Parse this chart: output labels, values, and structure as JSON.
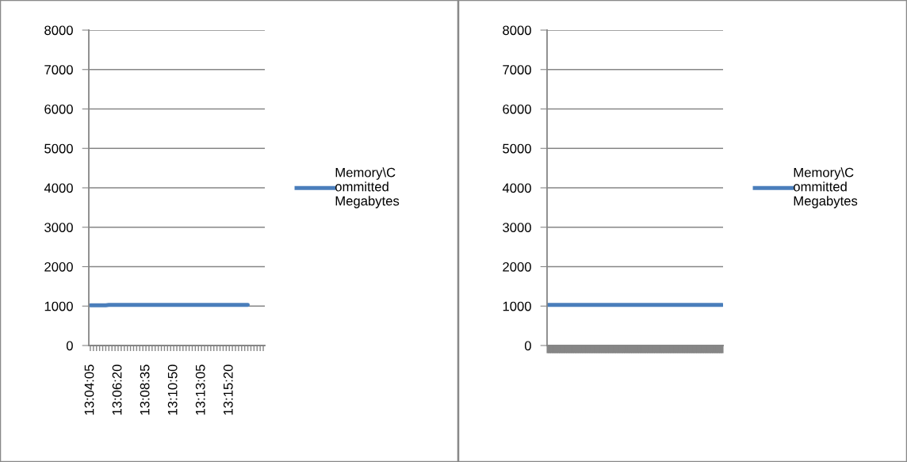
{
  "chart_data": [
    {
      "type": "line",
      "categories": [
        "13:04:05",
        null,
        null,
        null,
        null,
        null,
        null,
        null,
        null,
        "13:06:20",
        null,
        null,
        null,
        null,
        null,
        null,
        null,
        null,
        "13:08:35",
        null,
        null,
        null,
        null,
        null,
        null,
        null,
        null,
        "13:10:50",
        null,
        null,
        null,
        null,
        null,
        null,
        null,
        null,
        "13:13:05",
        null,
        null,
        null,
        null,
        null,
        null,
        null,
        null,
        "13:15:20",
        null,
        null,
        null,
        null,
        null,
        null,
        null,
        null,
        null,
        null,
        null
      ],
      "series": [
        {
          "name": "Memory\\C\nommitted\nMegabytes",
          "color": "#4a7ebb",
          "values": [
            1020,
            1020,
            1020,
            1020,
            1020,
            1020,
            1030,
            1030,
            1030,
            1030,
            1030,
            1030,
            1030,
            1030,
            1030,
            1030,
            1030,
            1030,
            1030,
            1030,
            1030,
            1030,
            1030,
            1030,
            1030,
            1030,
            1030,
            1030,
            1030,
            1030,
            1030,
            1030,
            1030,
            1030,
            1030,
            1030,
            1030,
            1030,
            1030,
            1030,
            1030,
            1030,
            1030,
            1030,
            1030,
            1030,
            1030,
            1030,
            1030,
            1030,
            1030,
            1030,
            null,
            null,
            null,
            null,
            null
          ]
        }
      ],
      "ylim": [
        0,
        8000
      ],
      "yticks": [
        0,
        1000,
        2000,
        3000,
        4000,
        5000,
        6000,
        7000,
        8000
      ],
      "grid": "y",
      "legend": "right",
      "marker": "none",
      "line_style": "solid"
    },
    {
      "type": "line",
      "categories": [
        null,
        null,
        null,
        null,
        null,
        null,
        null,
        null,
        null,
        null,
        null,
        null,
        null,
        null,
        null,
        null,
        null,
        null,
        null,
        null,
        null,
        null,
        null,
        null,
        null,
        null,
        null,
        null,
        null,
        null,
        null,
        null,
        null,
        null,
        null,
        null,
        null,
        null,
        null,
        null,
        null,
        null,
        null,
        null,
        null,
        null,
        null,
        null,
        null,
        null,
        null,
        null,
        null,
        null,
        null,
        null,
        null,
        null,
        null,
        null,
        null,
        null,
        null,
        null,
        null,
        null,
        null,
        null,
        null,
        null,
        null,
        null,
        null,
        null,
        null,
        null,
        null,
        null,
        null,
        null,
        null,
        null,
        null,
        null,
        null,
        null,
        null,
        null,
        null,
        null,
        null,
        null,
        null,
        null,
        null,
        null,
        null,
        null,
        null,
        null
      ],
      "series": [
        {
          "name": "Memory\\C\nommitted\nMegabytes",
          "color": "#4a7ebb",
          "values": [
            1030,
            1030,
            1030,
            1030,
            1030,
            1030,
            1030,
            1030,
            1030,
            1030,
            1030,
            1030,
            1030,
            1030,
            1030,
            1030,
            1030,
            1030,
            1030,
            1030,
            1030,
            1030,
            1030,
            1030,
            1030,
            1030,
            1030,
            1030,
            1030,
            1030,
            1030,
            1030,
            1030,
            1030,
            1030,
            1030,
            1030,
            1030,
            1030,
            1030,
            1030,
            1030,
            1030,
            1030,
            1030,
            1030,
            1030,
            1030,
            1030,
            1030,
            1030,
            1030,
            1030,
            1030,
            1030,
            1030,
            1030,
            1030,
            1030,
            1030,
            1030,
            1030,
            1030,
            1030,
            1030,
            1030,
            1030,
            1030,
            1030,
            1030,
            1030,
            1030,
            1030,
            1030,
            1030,
            1030,
            1030,
            1030,
            1030,
            1030,
            1030,
            1030,
            1030,
            1030,
            1030,
            1030,
            1030,
            1030,
            1030,
            1030,
            1030,
            1030,
            1030,
            1030,
            1030,
            1030,
            1030,
            1030,
            1030,
            1030
          ]
        }
      ],
      "ylim": [
        0,
        8000
      ],
      "yticks": [
        0,
        1000,
        2000,
        3000,
        4000,
        5000,
        6000,
        7000,
        8000
      ],
      "grid": "y",
      "legend": "right",
      "marker": "none",
      "line_style": "solid"
    }
  ]
}
